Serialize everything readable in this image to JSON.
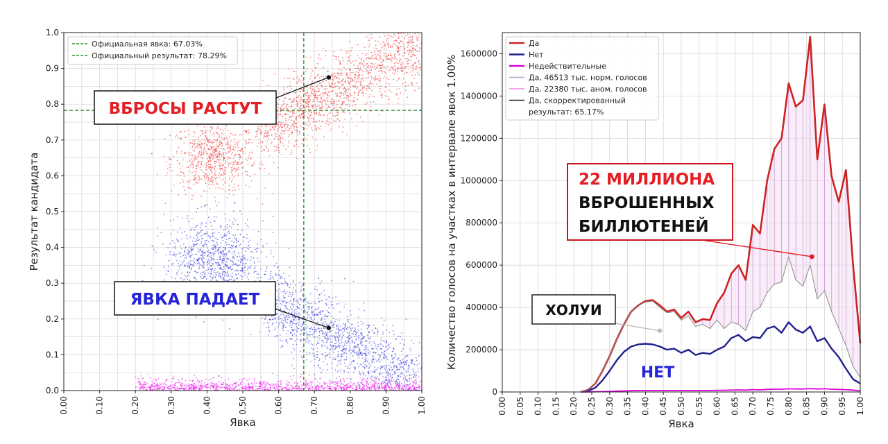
{
  "chart_data": [
    {
      "type": "scatter",
      "xlabel": "Явка",
      "ylabel": "Результат кандидата",
      "xlim": [
        0,
        1
      ],
      "ylim": [
        0,
        1
      ],
      "x_ticks": [
        "0.00",
        "0.10",
        "0.20",
        "0.30",
        "0.40",
        "0.50",
        "0.60",
        "0.70",
        "0.80",
        "0.90",
        "1.00"
      ],
      "y_ticks": [
        "0.0",
        "0.1",
        "0.2",
        "0.3",
        "0.4",
        "0.5",
        "0.6",
        "0.7",
        "0.8",
        "0.9",
        "1.0"
      ],
      "grid": true,
      "legend_position": "top-left",
      "legend": [
        {
          "label": "Официальная явка: 67.03%",
          "color": "#2e8b2e",
          "style": "dashed"
        },
        {
          "label": "Официальный результат: 78.29%",
          "color": "#2e8b2e",
          "style": "dashed"
        }
      ],
      "reference_lines": {
        "x": 0.6703,
        "y": 0.7829
      },
      "clusters": [
        {
          "name": "red",
          "color": "#ee1c1c",
          "center": [
            0.42,
            0.65
          ],
          "spread": [
            0.06,
            0.05
          ],
          "count": 700
        },
        {
          "name": "red",
          "color": "#ee1c1c",
          "trend_from": [
            0.55,
            0.72
          ],
          "trend_to": [
            1.0,
            0.97
          ],
          "spread": 0.05,
          "count": 1500
        },
        {
          "name": "blue",
          "color": "#2222dd",
          "center": [
            0.42,
            0.36
          ],
          "spread": [
            0.07,
            0.06
          ],
          "count": 900
        },
        {
          "name": "blue",
          "color": "#2222dd",
          "trend_from": [
            0.55,
            0.26
          ],
          "trend_to": [
            1.0,
            0.02
          ],
          "spread": 0.05,
          "count": 1500
        },
        {
          "name": "magenta",
          "color": "#ee00ee",
          "band_x": [
            0.2,
            1.0
          ],
          "band_y": [
            0.0,
            0.03
          ],
          "count": 1200
        }
      ],
      "annotations": [
        {
          "text": "ВБРОСЫ РАСТУТ",
          "color": "#e31e24",
          "point": [
            0.74,
            0.875
          ]
        },
        {
          "text": "ЯВКА ПАДАЕТ",
          "color": "#2525d8",
          "point": [
            0.74,
            0.175
          ]
        }
      ]
    },
    {
      "type": "line",
      "xlabel": "Явка",
      "ylabel": "Количество голосов на участках в интервале явок 1.00%",
      "xlim": [
        0,
        1
      ],
      "ylim": [
        0,
        1700000
      ],
      "x_ticks": [
        "0.00",
        "0.05",
        "0.10",
        "0.15",
        "0.20",
        "0.25",
        "0.30",
        "0.35",
        "0.40",
        "0.45",
        "0.50",
        "0.55",
        "0.60",
        "0.65",
        "0.70",
        "0.75",
        "0.80",
        "0.85",
        "0.90",
        "0.95",
        "1.00"
      ],
      "y_ticks": [
        "0",
        "200000",
        "400000",
        "600000",
        "800000",
        "1000000",
        "1200000",
        "1400000",
        "1600000"
      ],
      "grid": true,
      "legend_position": "top-left",
      "legend": [
        {
          "label": "Да",
          "color": "#cc2222"
        },
        {
          "label": "Нет",
          "color": "#1f1f8f"
        },
        {
          "label": "Недействительные",
          "color": "#dd00dd"
        },
        {
          "label": "Да, 46513 тыс. норм. голосов",
          "color": "#aaaacc"
        },
        {
          "label": "Да, 22380 тыс. аном. голосов",
          "color": "#ee88ee"
        },
        {
          "label": "Да, скорректированный",
          "color": "#222222"
        },
        {
          "label": "результат: 65.17%",
          "color": ""
        }
      ],
      "x": [
        0.22,
        0.24,
        0.26,
        0.28,
        0.3,
        0.32,
        0.34,
        0.36,
        0.38,
        0.4,
        0.42,
        0.44,
        0.46,
        0.48,
        0.5,
        0.52,
        0.54,
        0.56,
        0.58,
        0.6,
        0.62,
        0.64,
        0.66,
        0.68,
        0.7,
        0.72,
        0.74,
        0.76,
        0.78,
        0.8,
        0.82,
        0.84,
        0.86,
        0.88,
        0.9,
        0.92,
        0.94,
        0.96,
        0.98,
        1.0
      ],
      "series": [
        {
          "name": "Да",
          "color": "#cc2222",
          "values": [
            0,
            10000,
            40000,
            100000,
            170000,
            250000,
            320000,
            380000,
            410000,
            430000,
            435000,
            410000,
            380000,
            390000,
            350000,
            380000,
            330000,
            345000,
            340000,
            420000,
            470000,
            560000,
            600000,
            530000,
            790000,
            750000,
            1000000,
            1150000,
            1200000,
            1460000,
            1350000,
            1380000,
            1680000,
            1100000,
            1360000,
            1020000,
            900000,
            1050000,
            600000,
            230000
          ]
        },
        {
          "name": "Нет",
          "color": "#1f1f8f",
          "values": [
            0,
            5000,
            20000,
            55000,
            100000,
            150000,
            190000,
            215000,
            225000,
            228000,
            225000,
            215000,
            200000,
            205000,
            185000,
            200000,
            175000,
            185000,
            180000,
            200000,
            215000,
            255000,
            270000,
            240000,
            260000,
            255000,
            300000,
            310000,
            280000,
            330000,
            295000,
            280000,
            310000,
            240000,
            255000,
            205000,
            165000,
            110000,
            60000,
            40000
          ]
        },
        {
          "name": "Недействительные",
          "color": "#dd00dd",
          "values": [
            0,
            0,
            1000,
            2000,
            3000,
            4000,
            5000,
            6000,
            7000,
            7000,
            7000,
            7000,
            7000,
            7000,
            7000,
            7000,
            7000,
            7000,
            7000,
            8000,
            8000,
            9000,
            10000,
            9000,
            11000,
            10000,
            12000,
            13000,
            13000,
            15000,
            14000,
            14000,
            16000,
            14000,
            15000,
            13000,
            12000,
            11000,
            9000,
            5000
          ]
        },
        {
          "name": "Да, 46513 тыс. норм. голосов",
          "color": "#888888",
          "values": [
            0,
            10000,
            40000,
            100000,
            170000,
            250000,
            320000,
            380000,
            410000,
            425000,
            430000,
            400000,
            375000,
            380000,
            340000,
            360000,
            310000,
            320000,
            300000,
            340000,
            300000,
            330000,
            320000,
            290000,
            380000,
            400000,
            470000,
            510000,
            520000,
            640000,
            530000,
            500000,
            600000,
            440000,
            480000,
            380000,
            300000,
            220000,
            120000,
            70000
          ]
        }
      ],
      "annotations": [
        {
          "text_lines": [
            "22 МИЛЛИОНА",
            "ВБРОШЕННЫХ",
            "БИЛЛЮТЕНЕЙ"
          ],
          "colors": [
            "#e31e24",
            "#111111",
            "#111111"
          ],
          "point": [
            0.865,
            640000
          ]
        },
        {
          "text": "ХОЛУИ",
          "color": "#111111",
          "point": [
            0.44,
            290000
          ]
        },
        {
          "text": "НЕТ",
          "color": "#2525d8"
        }
      ]
    }
  ]
}
